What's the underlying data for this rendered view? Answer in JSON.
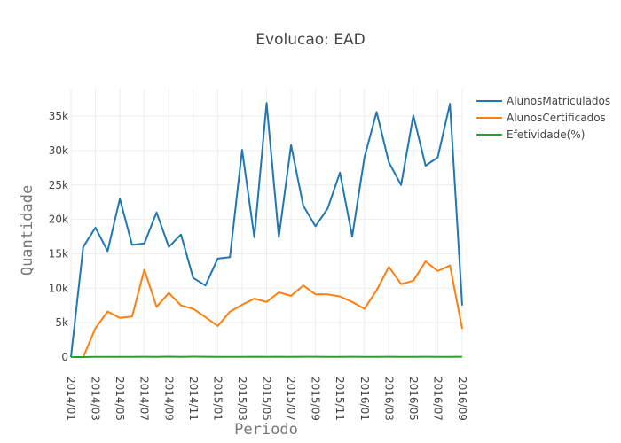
{
  "chart_data": {
    "type": "line",
    "title": "Evolucao: EAD",
    "xlabel": "Periodo",
    "ylabel": "Quantidade",
    "x": [
      "2014/01",
      "2014/02",
      "2014/03",
      "2014/04",
      "2014/05",
      "2014/06",
      "2014/07",
      "2014/08",
      "2014/09",
      "2014/10",
      "2014/11",
      "2014/12",
      "2015/01",
      "2015/02",
      "2015/03",
      "2015/04",
      "2015/05",
      "2015/06",
      "2015/07",
      "2015/08",
      "2015/09",
      "2015/10",
      "2015/11",
      "2015/12",
      "2016/01",
      "2016/02",
      "2016/03",
      "2016/04",
      "2016/05",
      "2016/06",
      "2016/07",
      "2016/08",
      "2016/09"
    ],
    "xticks": [
      "2014/01",
      "2014/03",
      "2014/05",
      "2014/07",
      "2014/09",
      "2014/11",
      "2015/01",
      "2015/03",
      "2015/05",
      "2015/07",
      "2015/09",
      "2015/11",
      "2016/01",
      "2016/03",
      "2016/05",
      "2016/07",
      "2016/09"
    ],
    "yticks": [
      0,
      5000,
      10000,
      15000,
      20000,
      25000,
      30000,
      35000
    ],
    "ytick_labels": [
      "0",
      "5k",
      "10k",
      "15k",
      "20k",
      "25k",
      "30k",
      "35k"
    ],
    "ylim": [
      0,
      39000
    ],
    "grid": true,
    "legend_position": "top-right",
    "series": [
      {
        "name": "AlunosMatriculados",
        "color": "#1f77b4",
        "values": [
          0,
          16000,
          18800,
          15400,
          23000,
          16300,
          16500,
          21000,
          16000,
          17800,
          11500,
          10400,
          14300,
          14500,
          30100,
          17400,
          36900,
          17400,
          30800,
          22000,
          19000,
          21600,
          26800,
          17500,
          29000,
          35600,
          28300,
          25000,
          35100,
          27800,
          29000,
          36800,
          7500
        ]
      },
      {
        "name": "AlunosCertificados",
        "color": "#ff7f0e",
        "values": [
          0,
          0,
          4200,
          6600,
          5700,
          5900,
          12700,
          7300,
          9300,
          7500,
          7000,
          5800,
          4500,
          6600,
          7600,
          8500,
          8000,
          9400,
          8900,
          10400,
          9100,
          9100,
          8800,
          8000,
          7000,
          9700,
          13100,
          10600,
          11100,
          13900,
          12500,
          13300,
          4100
        ]
      },
      {
        "name": "Efetividade(%)",
        "color": "#2ca02c",
        "values": [
          0,
          0,
          22,
          40,
          38,
          36,
          52,
          35,
          58,
          42,
          61,
          56,
          31,
          45,
          25,
          49,
          22,
          54,
          29,
          47,
          48,
          42,
          33,
          46,
          27,
          27,
          46,
          42,
          32,
          50,
          43,
          36,
          55
        ]
      }
    ]
  }
}
